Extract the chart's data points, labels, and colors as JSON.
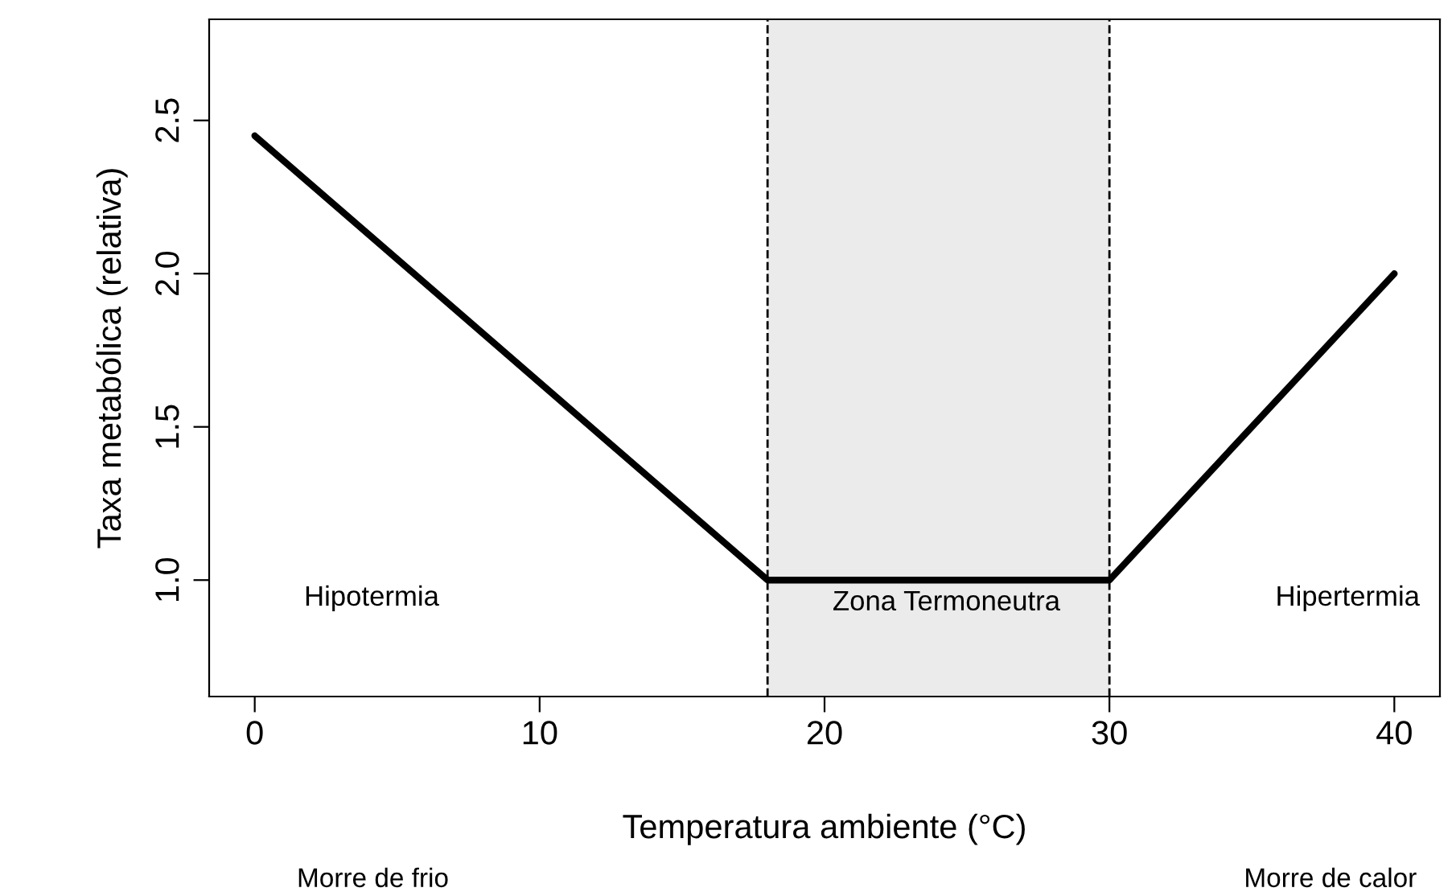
{
  "chart_data": {
    "type": "line",
    "xlabel": "Temperatura ambiente (°C)",
    "ylabel": "Taxa metabólica (relativa)",
    "x": [
      0,
      18,
      30,
      40
    ],
    "series": [
      {
        "color": "#000000",
        "values": [
          2.45,
          1.0,
          1.0,
          2.0
        ]
      }
    ],
    "xlim": [
      -1.6,
      41.6
    ],
    "xticks": [
      0,
      10,
      20,
      30,
      40
    ],
    "ylim": [
      0.62,
      2.83
    ],
    "yticks": [
      {
        "value": 1,
        "label": "1.0"
      },
      1.5,
      {
        "value": 2,
        "label": "2.0"
      },
      2.5
    ],
    "grid": false,
    "marker": "none",
    "line_style": "solid",
    "bands": [
      {
        "axis": "x",
        "from": 18,
        "to": 30,
        "color": "#ebebeb"
      }
    ],
    "ref_lines": [
      {
        "axis": "x",
        "value": 18,
        "line_style": "dashed",
        "color": "#000000"
      },
      {
        "axis": "x",
        "value": 30,
        "line_style": "dashed",
        "color": "#000000"
      }
    ],
    "annotations": [
      "Hipotermia",
      "Zona Termoneutra",
      "Hipertermia",
      "Morre de frio",
      "Morre de calor"
    ]
  }
}
